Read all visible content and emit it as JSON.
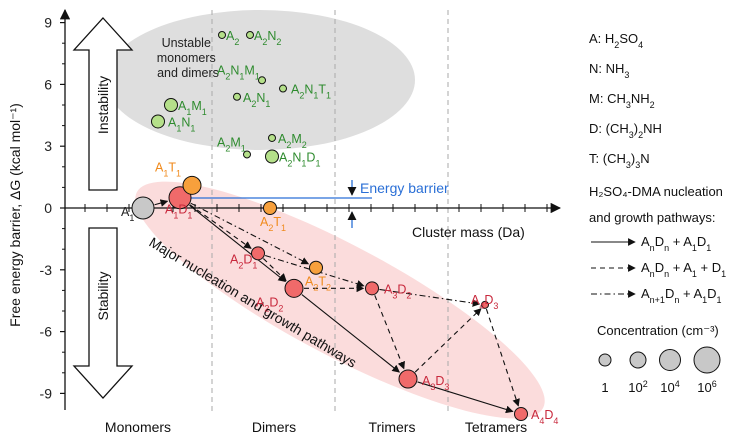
{
  "axes": {
    "y_title": "Free energy barrier, ΔG (kcal mol⁻¹)",
    "x_title": "Cluster mass (Da)",
    "y_ticks": [
      "9",
      "6",
      "3",
      "0",
      "-3",
      "-6",
      "-9"
    ],
    "x_categories": [
      "Monomers",
      "Dimers",
      "Trimers",
      "Tetramers"
    ]
  },
  "arrows": {
    "instability": "Instability",
    "stability": "Stability"
  },
  "unstable_label": [
    "Unstable",
    "monomers",
    "and dimers"
  ],
  "energy_barrier_label": "Energy barrier",
  "pathway_label": "Major nucleation and growth pathways",
  "colors": {
    "green": "#2e8b2e",
    "orange": "#f08a1c",
    "red": "#c8283c",
    "red_fill": "#f06a6a",
    "orange_fill": "#f7a03c",
    "green_fill": "#b5e08a",
    "gray_fill": "#c8c8c8",
    "blue": "#2a6fd6",
    "ellipse_gray": "#dedede",
    "ellipse_pink": "#fbdcdc"
  },
  "clusters": [
    {
      "id": "A1",
      "label": [
        "A",
        "1"
      ],
      "dg": 0.0,
      "size": "1e6",
      "color": "gray"
    },
    {
      "id": "A1D1",
      "label": [
        "A",
        "1",
        "D",
        "1"
      ],
      "dg": 0.5,
      "size": "1e6",
      "color": "red"
    },
    {
      "id": "A1T1",
      "label": [
        "A",
        "1",
        "T",
        "1"
      ],
      "dg": 1.1,
      "size": "1e4",
      "color": "orange"
    },
    {
      "id": "A2T1",
      "label": [
        "A",
        "2",
        "T",
        "1"
      ],
      "dg": 0.0,
      "size": "1e2",
      "color": "orange"
    },
    {
      "id": "A2D1",
      "label": [
        "A",
        "2",
        "D",
        "1"
      ],
      "dg": -2.2,
      "size": "1e2",
      "color": "red"
    },
    {
      "id": "A2T2",
      "label": [
        "A",
        "2",
        "T",
        "2"
      ],
      "dg": -2.9,
      "size": "1e2",
      "color": "orange"
    },
    {
      "id": "A2D2",
      "label": [
        "A",
        "2",
        "D",
        "2"
      ],
      "dg": -3.9,
      "size": "1e4",
      "color": "red"
    },
    {
      "id": "A3D2",
      "label": [
        "A",
        "3",
        "D",
        "2"
      ],
      "dg": -3.9,
      "size": "1e2",
      "color": "red"
    },
    {
      "id": "A4D3",
      "label": [
        "A",
        "4",
        "D",
        "3"
      ],
      "dg": -4.7,
      "size": "1",
      "color": "red"
    },
    {
      "id": "A3D3",
      "label": [
        "A",
        "3",
        "D",
        "3"
      ],
      "dg": -8.3,
      "size": "1e4",
      "color": "red"
    },
    {
      "id": "A4D4",
      "label": [
        "A",
        "4",
        "D",
        "4"
      ],
      "dg": -10.0,
      "size": "1e2",
      "color": "red"
    },
    {
      "id": "A1M1",
      "label": [
        "A",
        "1",
        "M",
        "1"
      ],
      "dg": 5.0,
      "size": "1e2",
      "color": "green"
    },
    {
      "id": "A1N1",
      "label": [
        "A",
        "1",
        "N",
        "1"
      ],
      "dg": 4.2,
      "size": "1e2",
      "color": "green"
    },
    {
      "id": "A2",
      "label": [
        "A",
        "2"
      ],
      "dg": 8.4,
      "size": "1",
      "color": "green"
    },
    {
      "id": "A2N2",
      "label": [
        "A",
        "2",
        "N",
        "2"
      ],
      "dg": 8.4,
      "size": "1",
      "color": "green"
    },
    {
      "id": "A2N1M1",
      "label": [
        "A",
        "2",
        "N",
        "1",
        "M",
        "1"
      ],
      "dg": 6.2,
      "size": "1",
      "color": "green"
    },
    {
      "id": "A2N1",
      "label": [
        "A",
        "2",
        "N",
        "1"
      ],
      "dg": 5.4,
      "size": "1",
      "color": "green"
    },
    {
      "id": "A2N1T1",
      "label": [
        "A",
        "2",
        "N",
        "1",
        "T",
        "1"
      ],
      "dg": 5.8,
      "size": "1",
      "color": "green"
    },
    {
      "id": "A2M1",
      "label": [
        "A",
        "2",
        "M",
        "1"
      ],
      "dg": 2.6,
      "size": "1",
      "color": "green"
    },
    {
      "id": "A2M2",
      "label": [
        "A",
        "2",
        "M",
        "2"
      ],
      "dg": 3.4,
      "size": "1",
      "color": "green"
    },
    {
      "id": "A2N1D1",
      "label": [
        "A",
        "2",
        "N",
        "1",
        "D",
        "1"
      ],
      "dg": 2.5,
      "size": "1e2",
      "color": "green"
    }
  ],
  "edges": [
    {
      "from": "A1",
      "to": "A1D1",
      "style": "solid"
    },
    {
      "from": "A1D1",
      "to": "A2D2",
      "style": "solid"
    },
    {
      "from": "A2D2",
      "to": "A3D3",
      "style": "solid"
    },
    {
      "from": "A3D3",
      "to": "A4D4",
      "style": "solid"
    },
    {
      "from": "A1D1",
      "to": "A2D1",
      "style": "dashed"
    },
    {
      "from": "A2D1",
      "to": "A2D2",
      "style": "dashed"
    },
    {
      "from": "A2D2",
      "to": "A3D2",
      "style": "dashed"
    },
    {
      "from": "A3D2",
      "to": "A3D3",
      "style": "dashed"
    },
    {
      "from": "A3D3",
      "to": "A4D3",
      "style": "dashed"
    },
    {
      "from": "A4D3",
      "to": "A4D4",
      "style": "dashed"
    },
    {
      "from": "A2D1",
      "to": "A3D2",
      "style": "dashdot"
    },
    {
      "from": "A3D2",
      "to": "A4D3",
      "style": "dashdot"
    },
    {
      "from": "A1D1",
      "to": "A2T2",
      "style": "dashdot"
    }
  ],
  "legend": {
    "formulas": [
      {
        "letter": "A:",
        "formula": "H",
        "parts": [
          "H",
          "2",
          "SO",
          "4"
        ]
      },
      {
        "letter": "N:",
        "parts": [
          "NH",
          "3"
        ]
      },
      {
        "letter": "M:",
        "parts": [
          "CH",
          "3",
          "NH",
          "2"
        ]
      },
      {
        "letter": "D:",
        "parts": [
          "(CH",
          "3",
          ")",
          "2",
          "NH"
        ]
      },
      {
        "letter": "T:",
        "parts": [
          "(CH",
          "3",
          ")",
          "3",
          "N"
        ]
      }
    ],
    "pathway_title_1": "H₂SO₄-DMA nucleation",
    "pathway_title_2": "and growth pathways:",
    "pathways": [
      {
        "style": "solid",
        "parts": [
          "A",
          "n",
          "D",
          "n",
          " + A",
          "1",
          "D",
          "1"
        ]
      },
      {
        "style": "dashed",
        "parts": [
          "A",
          "n",
          "D",
          "n",
          " + A",
          "1",
          " + D",
          "1"
        ]
      },
      {
        "style": "dashdot",
        "parts": [
          "A",
          "n+1",
          "D",
          "n",
          " + A",
          "1",
          "D",
          "1"
        ]
      }
    ],
    "concentration_title": "Concentration (cm⁻³)",
    "concentration_sizes": [
      {
        "label": "1",
        "sup": ""
      },
      {
        "label": "10",
        "sup": "2"
      },
      {
        "label": "10",
        "sup": "4"
      },
      {
        "label": "10",
        "sup": "6"
      }
    ]
  }
}
